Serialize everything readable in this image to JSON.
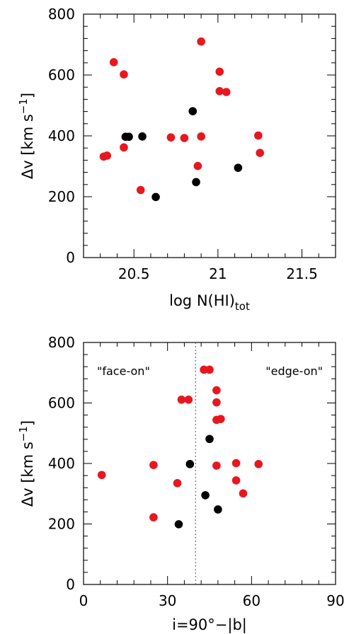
{
  "chart_data": [
    {
      "type": "scatter",
      "xlabel": "log N(HI)",
      "xlabel_sub": "tot",
      "ylabel": "Δv [km s",
      "ylabel_sup": "−1",
      "ylabel_close": "]",
      "xlim": [
        20.2,
        21.7
      ],
      "ylim": [
        0,
        800
      ],
      "xticks": [
        20.5,
        21,
        21.5
      ],
      "xtick_labels": [
        "20.5",
        "21",
        "21.5"
      ],
      "yticks": [
        0,
        200,
        400,
        600,
        800
      ],
      "ytick_labels": [
        "0",
        "200",
        "400",
        "600",
        "800"
      ],
      "colors": {
        "red": "#e8171f",
        "black": "#000000"
      },
      "points": [
        {
          "x": 20.32,
          "y": 332,
          "color": "red"
        },
        {
          "x": 20.34,
          "y": 335,
          "color": "red"
        },
        {
          "x": 20.38,
          "y": 642,
          "color": "red"
        },
        {
          "x": 20.44,
          "y": 602,
          "color": "red"
        },
        {
          "x": 20.44,
          "y": 362,
          "color": "red"
        },
        {
          "x": 20.45,
          "y": 397,
          "color": "black"
        },
        {
          "x": 20.47,
          "y": 397,
          "color": "black"
        },
        {
          "x": 20.54,
          "y": 222,
          "color": "red"
        },
        {
          "x": 20.55,
          "y": 398,
          "color": "black"
        },
        {
          "x": 20.63,
          "y": 199,
          "color": "black"
        },
        {
          "x": 20.72,
          "y": 395,
          "color": "red"
        },
        {
          "x": 20.8,
          "y": 393,
          "color": "red"
        },
        {
          "x": 20.85,
          "y": 481,
          "color": "black"
        },
        {
          "x": 20.87,
          "y": 248,
          "color": "black"
        },
        {
          "x": 20.88,
          "y": 301,
          "color": "red"
        },
        {
          "x": 20.9,
          "y": 710,
          "color": "red"
        },
        {
          "x": 20.9,
          "y": 398,
          "color": "red"
        },
        {
          "x": 21.01,
          "y": 611,
          "color": "red"
        },
        {
          "x": 21.01,
          "y": 547,
          "color": "red"
        },
        {
          "x": 21.05,
          "y": 544,
          "color": "red"
        },
        {
          "x": 21.12,
          "y": 295,
          "color": "black"
        },
        {
          "x": 21.24,
          "y": 401,
          "color": "red"
        },
        {
          "x": 21.25,
          "y": 344,
          "color": "red"
        }
      ]
    },
    {
      "type": "scatter",
      "xlabel": "i=90°−|b|",
      "ylabel": "Δv [km s",
      "ylabel_sup": "−1",
      "ylabel_close": "]",
      "xlim": [
        0,
        90
      ],
      "ylim": [
        0,
        800
      ],
      "xticks": [
        0,
        30,
        60,
        90
      ],
      "xtick_labels": [
        "0",
        "30",
        "60",
        "90"
      ],
      "yticks": [
        0,
        200,
        400,
        600,
        800
      ],
      "ytick_labels": [
        "0",
        "200",
        "400",
        "600",
        "800"
      ],
      "divider_x": 40,
      "annotations": [
        "\"face-on\"",
        "\"edge-on\""
      ],
      "colors": {
        "red": "#e8171f",
        "black": "#000000"
      },
      "points": [
        {
          "x": 6.5,
          "y": 362,
          "color": "red"
        },
        {
          "x": 25,
          "y": 395,
          "color": "red"
        },
        {
          "x": 25,
          "y": 222,
          "color": "red"
        },
        {
          "x": 33.5,
          "y": 335,
          "color": "red"
        },
        {
          "x": 34,
          "y": 199,
          "color": "black"
        },
        {
          "x": 35,
          "y": 611,
          "color": "red"
        },
        {
          "x": 37.5,
          "y": 611,
          "color": "red"
        },
        {
          "x": 38,
          "y": 398,
          "color": "black"
        },
        {
          "x": 43,
          "y": 710,
          "color": "red"
        },
        {
          "x": 45,
          "y": 710,
          "color": "red"
        },
        {
          "x": 43.5,
          "y": 295,
          "color": "black"
        },
        {
          "x": 45,
          "y": 481,
          "color": "black"
        },
        {
          "x": 47.5,
          "y": 642,
          "color": "red"
        },
        {
          "x": 47.5,
          "y": 602,
          "color": "red"
        },
        {
          "x": 47.5,
          "y": 544,
          "color": "red"
        },
        {
          "x": 49,
          "y": 547,
          "color": "red"
        },
        {
          "x": 47.5,
          "y": 393,
          "color": "red"
        },
        {
          "x": 48,
          "y": 248,
          "color": "black"
        },
        {
          "x": 54.5,
          "y": 401,
          "color": "red"
        },
        {
          "x": 54.5,
          "y": 344,
          "color": "red"
        },
        {
          "x": 57,
          "y": 301,
          "color": "red"
        },
        {
          "x": 62.5,
          "y": 398,
          "color": "red"
        }
      ]
    }
  ]
}
